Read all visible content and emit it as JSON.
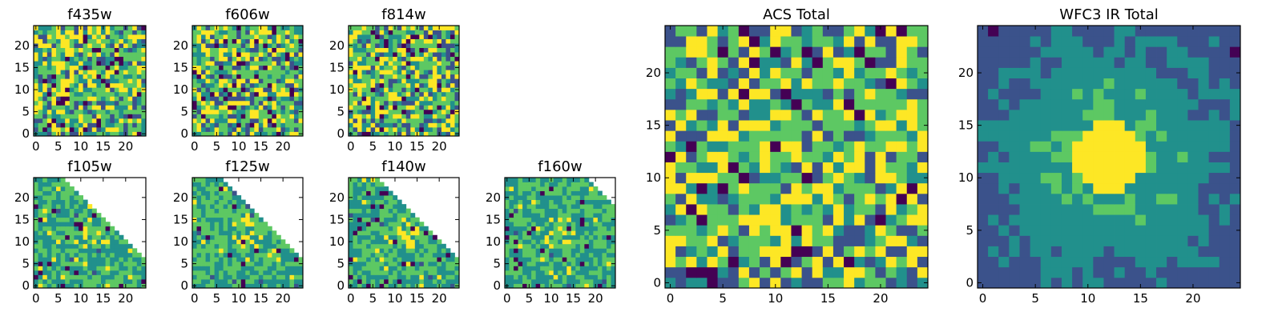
{
  "chart_data": [
    {
      "type": "heatmap",
      "title": "f435w",
      "image": "noise",
      "size": 25,
      "seed": 11,
      "xticks": [
        0,
        5,
        10,
        15,
        20
      ],
      "yticks": [
        0,
        5,
        10,
        15,
        20
      ],
      "xlim": [
        -0.5,
        24.5
      ],
      "ylim": [
        -0.5,
        24.5
      ]
    },
    {
      "type": "heatmap",
      "title": "f606w",
      "image": "noise",
      "size": 25,
      "seed": 23,
      "xticks": [
        0,
        5,
        10,
        15,
        20
      ],
      "yticks": [
        0,
        5,
        10,
        15,
        20
      ],
      "xlim": [
        -0.5,
        24.5
      ],
      "ylim": [
        -0.5,
        24.5
      ]
    },
    {
      "type": "heatmap",
      "title": "f814w",
      "image": "noise",
      "size": 25,
      "seed": 37,
      "xticks": [
        0,
        5,
        10,
        15,
        20
      ],
      "yticks": [
        0,
        5,
        10,
        15,
        20
      ],
      "xlim": [
        -0.5,
        24.5
      ],
      "ylim": [
        -0.5,
        24.5
      ]
    },
    {
      "type": "heatmap",
      "title": "f105w",
      "image": "ir-masked",
      "size": 25,
      "seed": 41,
      "xticks": [
        0,
        5,
        10,
        15,
        20
      ],
      "yticks": [
        0,
        5,
        10,
        15,
        20
      ],
      "xlim": [
        -0.5,
        24.5
      ],
      "ylim": [
        -0.5,
        24.5
      ]
    },
    {
      "type": "heatmap",
      "title": "f125w",
      "image": "ir-masked",
      "size": 25,
      "seed": 53,
      "xticks": [
        0,
        5,
        10,
        15,
        20
      ],
      "yticks": [
        0,
        5,
        10,
        15,
        20
      ],
      "xlim": [
        -0.5,
        24.5
      ],
      "ylim": [
        -0.5,
        24.5
      ]
    },
    {
      "type": "heatmap",
      "title": "f140w",
      "image": "ir-masked",
      "size": 25,
      "seed": 67,
      "xticks": [
        0,
        5,
        10,
        15,
        20
      ],
      "yticks": [
        0,
        5,
        10,
        15,
        20
      ],
      "xlim": [
        -0.5,
        24.5
      ],
      "ylim": [
        -0.5,
        24.5
      ]
    },
    {
      "type": "heatmap",
      "title": "f160w",
      "image": "ir-corner",
      "size": 25,
      "seed": 79,
      "xticks": [
        0,
        5,
        10,
        15,
        20
      ],
      "yticks": [
        0,
        5,
        10,
        15,
        20
      ],
      "xlim": [
        -0.5,
        24.5
      ],
      "ylim": [
        -0.5,
        24.5
      ]
    },
    {
      "type": "heatmap",
      "title": "ACS Total",
      "image": "noise",
      "size": 25,
      "seed": 97,
      "xticks": [
        0,
        5,
        10,
        15,
        20
      ],
      "yticks": [
        0,
        5,
        10,
        15,
        20
      ],
      "xlim": [
        -0.5,
        24.5
      ],
      "ylim": [
        -0.5,
        24.5
      ]
    },
    {
      "type": "heatmap",
      "title": "WFC3 IR Total",
      "image": "smooth-source",
      "size": 25,
      "seed": 101,
      "xticks": [
        0,
        5,
        10,
        15,
        20
      ],
      "yticks": [
        0,
        5,
        10,
        15,
        20
      ],
      "xlim": [
        -0.5,
        24.5
      ],
      "ylim": [
        -0.5,
        24.5
      ]
    }
  ],
  "colormap": [
    "#440154",
    "#3b528b",
    "#21908c",
    "#5dc863",
    "#fde725"
  ]
}
